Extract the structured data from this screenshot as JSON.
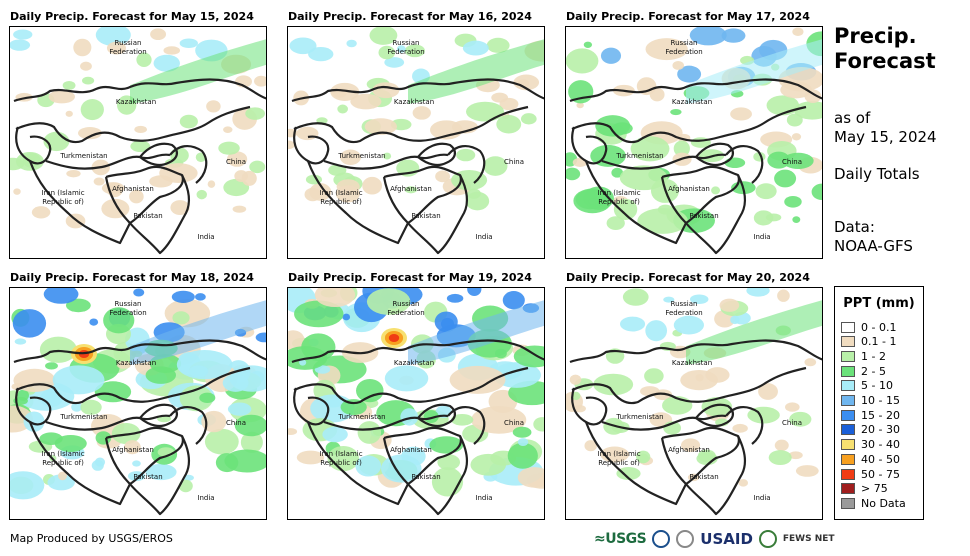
{
  "panels": [
    {
      "title": "Daily Precip. Forecast for May 15, 2024",
      "intensity": 1,
      "hotspots": []
    },
    {
      "title": "Daily Precip. Forecast for May 16, 2024",
      "intensity": 1,
      "hotspots": []
    },
    {
      "title": "Daily Precip. Forecast for May 17, 2024",
      "intensity": 2,
      "hotspots": []
    },
    {
      "title": "Daily Precip. Forecast for May 18, 2024",
      "intensity": 3,
      "hotspots": [
        "west-kazakhstan"
      ]
    },
    {
      "title": "Daily Precip. Forecast for May 19, 2024",
      "intensity": 3,
      "hotspots": [
        "north-kazakhstan"
      ]
    },
    {
      "title": "Daily Precip. Forecast for May 20, 2024",
      "intensity": 1,
      "hotspots": []
    }
  ],
  "country_labels": {
    "russia": [
      "Russian",
      "Federation"
    ],
    "kazakhstan": "Kazakhstan",
    "turkmenistan": "Turkmenistan",
    "china": "China",
    "iran": [
      "Iran  (Islamic",
      "Republic of)"
    ],
    "afghanistan": "Afghanistan",
    "pakistan": "Pakistan",
    "india": "India"
  },
  "side": {
    "title_line1": "Precip.",
    "title_line2": "Forecast",
    "as_of": "as of",
    "date": "May 15, 2024",
    "totals": "Daily Totals",
    "data_label": "Data:",
    "source": "NOAA-GFS"
  },
  "legend": {
    "title": "PPT (mm)",
    "items": [
      {
        "label": "0 - 0.1",
        "color": "#ffffff"
      },
      {
        "label": "0.1 - 1",
        "color": "#f0dcc0"
      },
      {
        "label": "1 - 2",
        "color": "#b8f0a8"
      },
      {
        "label": "2 - 5",
        "color": "#6be27a"
      },
      {
        "label": "5 - 10",
        "color": "#a8ecf8"
      },
      {
        "label": "10 - 15",
        "color": "#6fb6ef"
      },
      {
        "label": "15 - 20",
        "color": "#3b8ef0"
      },
      {
        "label": "20 - 30",
        "color": "#1a5fd8"
      },
      {
        "label": "30 - 40",
        "color": "#f7e070"
      },
      {
        "label": "40 - 50",
        "color": "#f7a020"
      },
      {
        "label": "50 - 75",
        "color": "#f03c14"
      },
      {
        "label": "> 75",
        "color": "#a01e1e"
      },
      {
        "label": "No Data",
        "color": "#9a9a9a"
      }
    ]
  },
  "footer": "Map Produced by USGS/EROS",
  "logos": {
    "usgs": "USGS",
    "usaid": "USAID",
    "fews": "FEWS NET"
  }
}
